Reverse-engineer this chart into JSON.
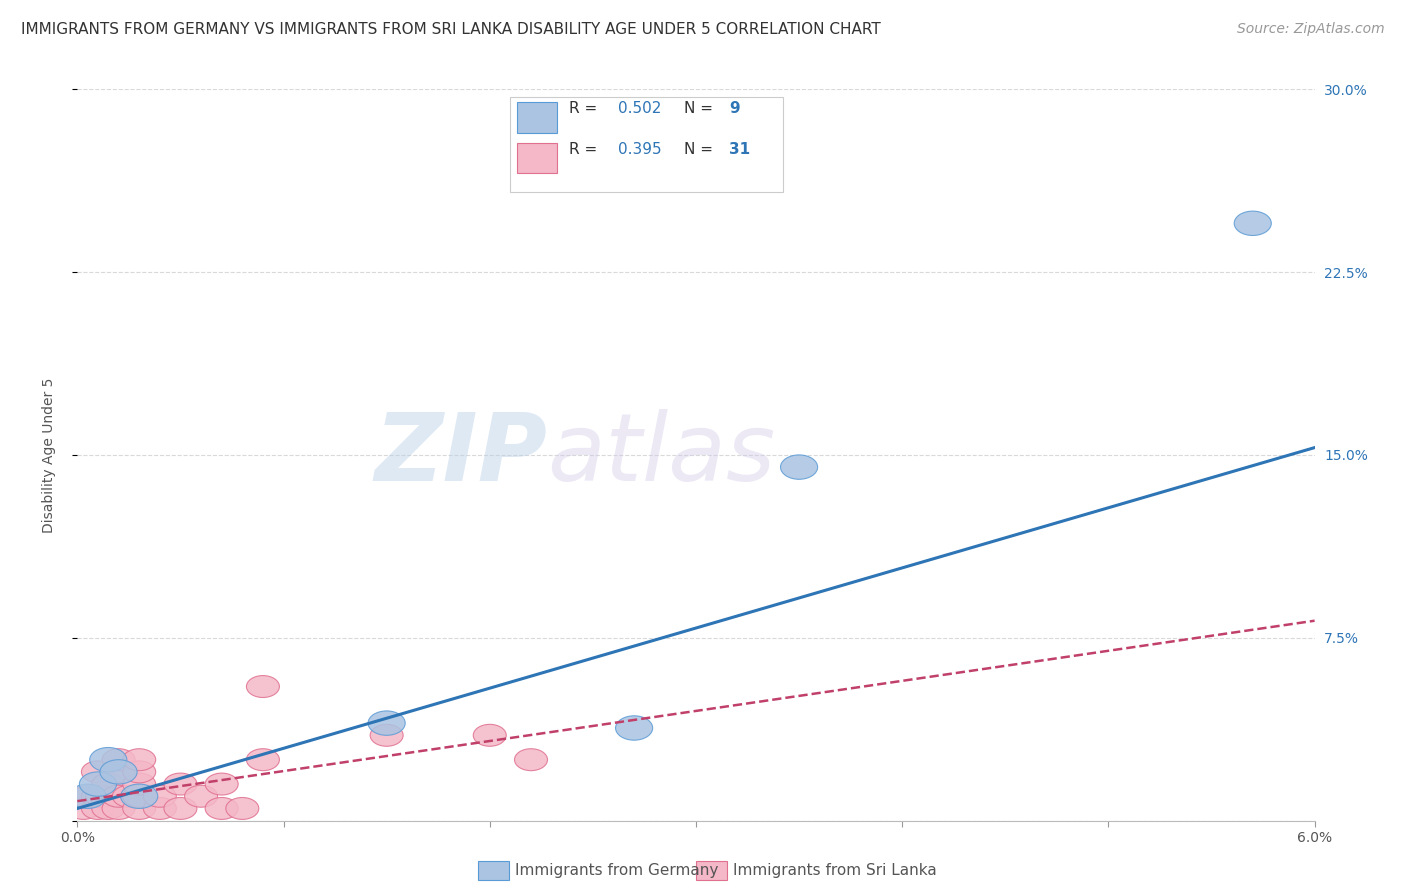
{
  "title": "IMMIGRANTS FROM GERMANY VS IMMIGRANTS FROM SRI LANKA DISABILITY AGE UNDER 5 CORRELATION CHART",
  "source": "Source: ZipAtlas.com",
  "ylabel": "Disability Age Under 5",
  "xlabel_germany": "Immigrants from Germany",
  "xlabel_srilanka": "Immigrants from Sri Lanka",
  "xlim": [
    0.0,
    0.06
  ],
  "ylim": [
    0.0,
    0.3
  ],
  "yticks": [
    0.0,
    0.075,
    0.15,
    0.225,
    0.3
  ],
  "ytick_labels": [
    "",
    "7.5%",
    "15.0%",
    "22.5%",
    "30.0%"
  ],
  "xticks": [
    0.0,
    0.01,
    0.02,
    0.03,
    0.04,
    0.05,
    0.06
  ],
  "xtick_labels": [
    "0.0%",
    "",
    "",
    "",
    "",
    "",
    "6.0%"
  ],
  "germany_R": 0.502,
  "germany_N": 9,
  "srilanka_R": 0.395,
  "srilanka_N": 31,
  "germany_color": "#aac4e2",
  "germany_edge_color": "#5b9bd5",
  "germany_line_color": "#2e75b6",
  "srilanka_color": "#f4b8c8",
  "srilanka_edge_color": "#e07090",
  "srilanka_line_color": "#c0406a",
  "germany_x": [
    0.0005,
    0.001,
    0.0015,
    0.002,
    0.003,
    0.015,
    0.027,
    0.035,
    0.057
  ],
  "germany_y": [
    0.01,
    0.015,
    0.025,
    0.02,
    0.01,
    0.04,
    0.038,
    0.145,
    0.245
  ],
  "srilanka_x": [
    0.0003,
    0.0005,
    0.001,
    0.001,
    0.001,
    0.0012,
    0.0015,
    0.0015,
    0.002,
    0.002,
    0.002,
    0.002,
    0.0025,
    0.003,
    0.003,
    0.003,
    0.003,
    0.003,
    0.004,
    0.004,
    0.005,
    0.005,
    0.006,
    0.007,
    0.007,
    0.008,
    0.009,
    0.009,
    0.015,
    0.02,
    0.022
  ],
  "srilanka_y": [
    0.005,
    0.01,
    0.005,
    0.01,
    0.02,
    0.01,
    0.005,
    0.015,
    0.005,
    0.01,
    0.02,
    0.025,
    0.01,
    0.005,
    0.01,
    0.015,
    0.02,
    0.025,
    0.005,
    0.01,
    0.005,
    0.015,
    0.01,
    0.005,
    0.015,
    0.005,
    0.025,
    0.055,
    0.035,
    0.035,
    0.025
  ],
  "germany_line_x": [
    0.0,
    0.06
  ],
  "germany_line_y": [
    0.005,
    0.153
  ],
  "srilanka_line_x": [
    0.0,
    0.06
  ],
  "srilanka_line_y": [
    0.008,
    0.082
  ],
  "watermark_zip": "ZIP",
  "watermark_atlas": "atlas",
  "background_color": "#ffffff",
  "grid_color": "#d9d9d9",
  "title_fontsize": 11,
  "axis_label_fontsize": 10,
  "tick_label_fontsize": 10,
  "legend_fontsize": 11,
  "source_fontsize": 10
}
